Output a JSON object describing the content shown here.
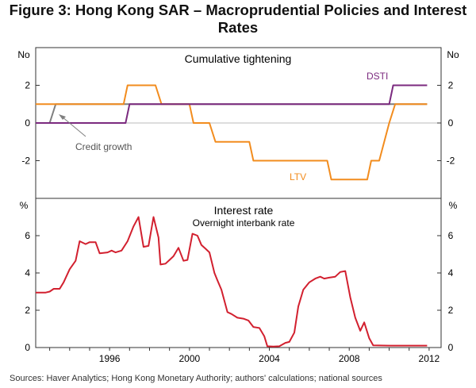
{
  "figure": {
    "title_line1": "Figure 3: Hong Kong SAR – Macroprudential Policies and Interest",
    "title_line2": "Rates",
    "sources": "Sources:   Haver Analytics; Hong Kong Monetary Authority; authors' calculations; national sources"
  },
  "colors": {
    "ltv": "#f28c1e",
    "dsti": "#7b2a7f",
    "credit": "#7f7f7f",
    "interest": "#d2202f",
    "axis": "#333333"
  },
  "chart_data": [
    {
      "type": "line",
      "title": "Cumulative tightening",
      "ylabel_left": "No",
      "ylabel_right": "No",
      "ylim": [
        -4,
        4
      ],
      "yticks": [
        -2,
        0,
        2
      ],
      "ytick_labels": [
        "-2",
        "0",
        "2"
      ],
      "xlim": [
        1992.3,
        2012.6
      ],
      "series": [
        {
          "name": "LTV",
          "label": "LTV",
          "color": "#f28c1e",
          "points": [
            [
              1992.3,
              1
            ],
            [
              1996.7,
              1
            ],
            [
              1996.9,
              2
            ],
            [
              1998.3,
              2
            ],
            [
              1998.6,
              1
            ],
            [
              2000.0,
              1
            ],
            [
              2000.2,
              0
            ],
            [
              2001.0,
              0
            ],
            [
              2001.3,
              -1
            ],
            [
              2003.0,
              -1
            ],
            [
              2003.2,
              -2
            ],
            [
              2006.9,
              -2
            ],
            [
              2007.1,
              -3
            ],
            [
              2008.9,
              -3
            ],
            [
              2009.1,
              -2
            ],
            [
              2009.5,
              -2
            ],
            [
              2010.0,
              0
            ],
            [
              2010.3,
              1
            ],
            [
              2011.9,
              1
            ]
          ]
        },
        {
          "name": "DSTI",
          "label": "DSTI",
          "color": "#7b2a7f",
          "points": [
            [
              1992.3,
              0
            ],
            [
              1996.8,
              0
            ],
            [
              1997.0,
              1
            ],
            [
              2010.0,
              1
            ],
            [
              2010.2,
              2
            ],
            [
              2011.9,
              2
            ]
          ]
        },
        {
          "name": "Credit growth",
          "label": "Credit growth",
          "color": "#7f7f7f",
          "points": [
            [
              1992.3,
              0
            ],
            [
              1993.0,
              0
            ],
            [
              1993.3,
              1
            ],
            [
              2011.9,
              1
            ]
          ]
        }
      ]
    },
    {
      "type": "line",
      "title": "Interest rate",
      "subtitle": "Overnight interbank rate",
      "ylabel_left": "%",
      "ylabel_right": "%",
      "ylim": [
        0,
        8
      ],
      "yticks": [
        0,
        2,
        4,
        6
      ],
      "ytick_labels": [
        "0",
        "2",
        "4",
        "6"
      ],
      "xlim": [
        1992.3,
        2012.6
      ],
      "xticks": [
        1996,
        2000,
        2004,
        2008,
        2012
      ],
      "xtick_labels": [
        "1996",
        "2000",
        "2004",
        "2008",
        "2012"
      ],
      "series": [
        {
          "name": "Overnight interbank rate",
          "color": "#d2202f",
          "points": [
            [
              1992.3,
              2.95
            ],
            [
              1992.8,
              2.95
            ],
            [
              1993.0,
              3.0
            ],
            [
              1993.2,
              3.15
            ],
            [
              1993.5,
              3.15
            ],
            [
              1993.7,
              3.5
            ],
            [
              1994.0,
              4.2
            ],
            [
              1994.3,
              4.65
            ],
            [
              1994.5,
              5.7
            ],
            [
              1994.8,
              5.55
            ],
            [
              1995.0,
              5.65
            ],
            [
              1995.3,
              5.65
            ],
            [
              1995.5,
              5.05
            ],
            [
              1995.9,
              5.1
            ],
            [
              1996.1,
              5.2
            ],
            [
              1996.3,
              5.1
            ],
            [
              1996.6,
              5.2
            ],
            [
              1996.9,
              5.7
            ],
            [
              1997.2,
              6.5
            ],
            [
              1997.45,
              7.0
            ],
            [
              1997.7,
              5.4
            ],
            [
              1997.95,
              5.45
            ],
            [
              1998.2,
              7.0
            ],
            [
              1998.45,
              5.9
            ],
            [
              1998.55,
              4.45
            ],
            [
              1998.8,
              4.5
            ],
            [
              1999.0,
              4.7
            ],
            [
              1999.2,
              4.9
            ],
            [
              1999.45,
              5.35
            ],
            [
              1999.7,
              4.65
            ],
            [
              1999.9,
              4.7
            ],
            [
              2000.15,
              6.1
            ],
            [
              2000.4,
              6.0
            ],
            [
              2000.6,
              5.5
            ],
            [
              2000.8,
              5.3
            ],
            [
              2001.0,
              5.1
            ],
            [
              2001.25,
              4.0
            ],
            [
              2001.4,
              3.6
            ],
            [
              2001.6,
              3.1
            ],
            [
              2001.9,
              1.9
            ],
            [
              2002.1,
              1.8
            ],
            [
              2002.4,
              1.6
            ],
            [
              2002.7,
              1.55
            ],
            [
              2002.95,
              1.45
            ],
            [
              2003.2,
              1.1
            ],
            [
              2003.5,
              1.05
            ],
            [
              2003.75,
              0.6
            ],
            [
              2003.9,
              0.07
            ],
            [
              2004.2,
              0.05
            ],
            [
              2004.5,
              0.07
            ],
            [
              2004.8,
              0.25
            ],
            [
              2005.0,
              0.3
            ],
            [
              2005.25,
              0.8
            ],
            [
              2005.45,
              2.2
            ],
            [
              2005.7,
              3.1
            ],
            [
              2006.0,
              3.5
            ],
            [
              2006.3,
              3.7
            ],
            [
              2006.55,
              3.8
            ],
            [
              2006.75,
              3.7
            ],
            [
              2007.0,
              3.75
            ],
            [
              2007.3,
              3.8
            ],
            [
              2007.55,
              4.05
            ],
            [
              2007.8,
              4.1
            ],
            [
              2008.05,
              2.7
            ],
            [
              2008.3,
              1.6
            ],
            [
              2008.55,
              0.9
            ],
            [
              2008.75,
              1.35
            ],
            [
              2009.0,
              0.5
            ],
            [
              2009.2,
              0.12
            ],
            [
              2010.0,
              0.1
            ],
            [
              2011.0,
              0.1
            ],
            [
              2011.9,
              0.1
            ]
          ]
        }
      ]
    }
  ]
}
